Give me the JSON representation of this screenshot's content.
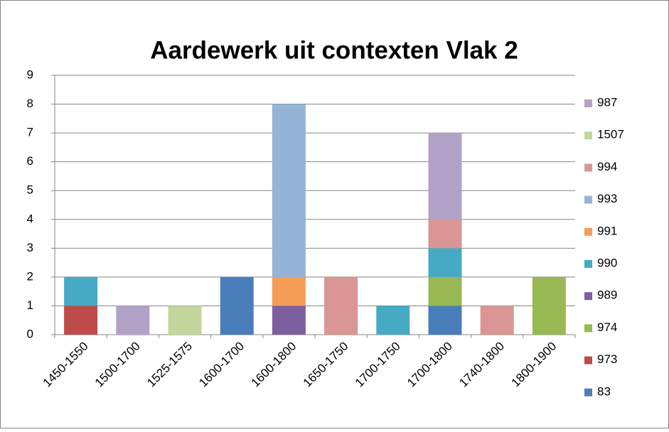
{
  "chart_data": {
    "type": "stacked_bar",
    "title": "Aardewerk uit contexten Vlak 2",
    "categories": [
      "1450-1550",
      "1500-1700",
      "1525-1575",
      "1600-1700",
      "1600-1800",
      "1650-1750",
      "1700-1750",
      "1700-1800",
      "1740-1800",
      "1800-1900"
    ],
    "series": [
      {
        "name": "83",
        "color": "#4a7ebb",
        "values": [
          0,
          0,
          0,
          2,
          0,
          0,
          0,
          1,
          0,
          0
        ]
      },
      {
        "name": "973",
        "color": "#be4b48",
        "values": [
          1,
          0,
          0,
          0,
          0,
          0,
          0,
          0,
          0,
          0
        ]
      },
      {
        "name": "974",
        "color": "#98b954",
        "values": [
          0,
          0,
          0,
          0,
          0,
          0,
          0,
          1,
          0,
          2
        ]
      },
      {
        "name": "989",
        "color": "#7d5fa0",
        "values": [
          0,
          0,
          0,
          0,
          1,
          0,
          0,
          0,
          0,
          0
        ]
      },
      {
        "name": "990",
        "color": "#46aac5",
        "values": [
          1,
          0,
          0,
          0,
          0,
          0,
          1,
          1,
          0,
          0
        ]
      },
      {
        "name": "991",
        "color": "#f59d56",
        "values": [
          0,
          0,
          0,
          0,
          1,
          0,
          0,
          0,
          0,
          0
        ]
      },
      {
        "name": "993",
        "color": "#95b3d7",
        "values": [
          0,
          0,
          0,
          0,
          6,
          0,
          0,
          0,
          0,
          0
        ]
      },
      {
        "name": "994",
        "color": "#d99694",
        "values": [
          0,
          0,
          0,
          0,
          0,
          2,
          0,
          1,
          1,
          0
        ]
      },
      {
        "name": "1507",
        "color": "#c3d69b",
        "values": [
          0,
          0,
          1,
          0,
          0,
          0,
          0,
          0,
          0,
          0
        ]
      },
      {
        "name": "987",
        "color": "#b3a2c7",
        "values": [
          0,
          1,
          0,
          0,
          0,
          0,
          0,
          3,
          0,
          0
        ]
      }
    ],
    "ylim": [
      0,
      9
    ],
    "yticks": [
      0,
      1,
      2,
      3,
      4,
      5,
      6,
      7,
      8,
      9
    ],
    "grid": true,
    "legend": "right"
  }
}
